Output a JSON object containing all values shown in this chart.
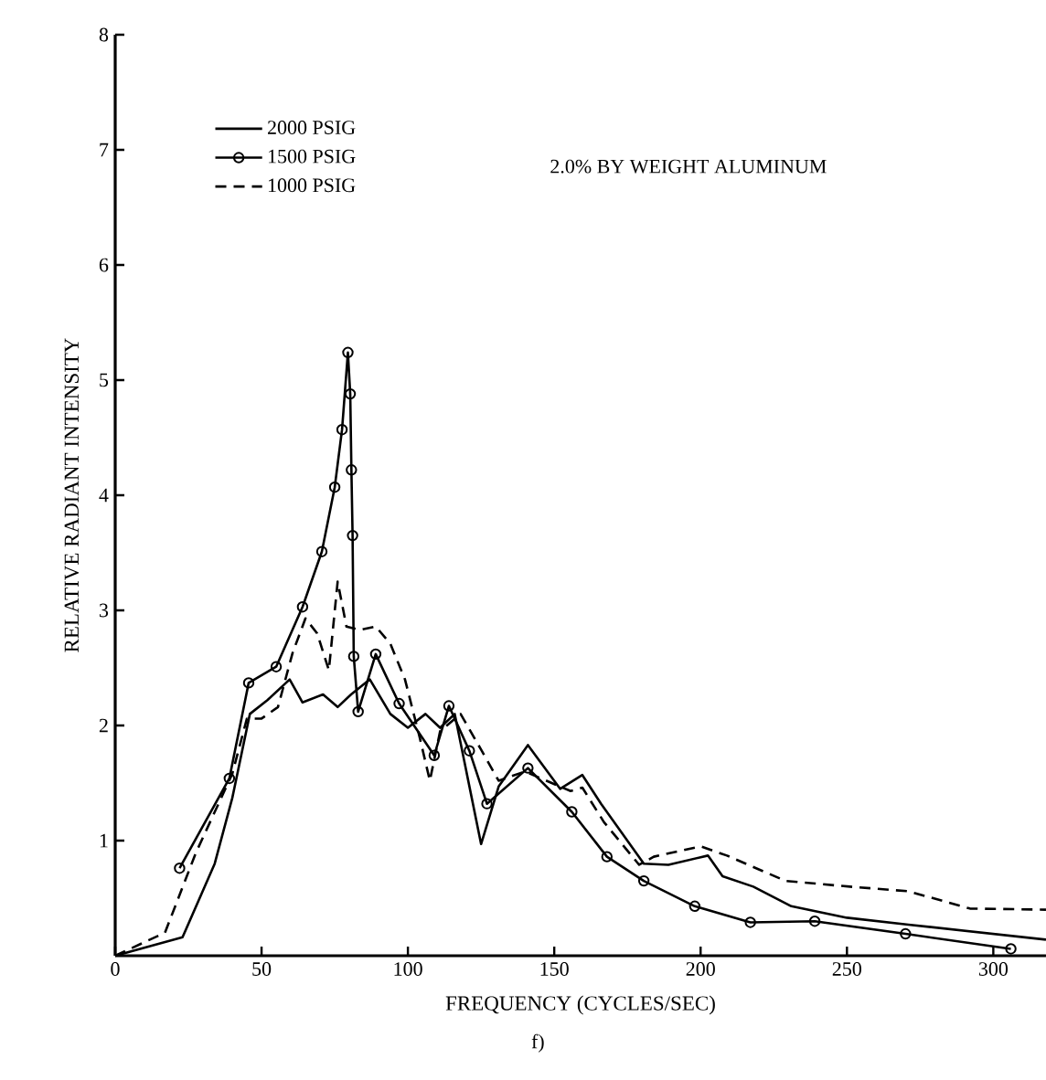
{
  "chart_data": {
    "type": "line",
    "xlabel": "FREQUENCY (CYCLES/SEC)",
    "ylabel": "RELATIVE RADIANT INTENSITY",
    "annotations": [
      "2.0% BY WEIGHT ALUMINUM",
      "f)"
    ],
    "xlim": [
      0,
      318
    ],
    "ylim": [
      0,
      8
    ],
    "xticks": [
      0,
      50,
      100,
      150,
      200,
      250,
      300
    ],
    "yticks": [
      1,
      2,
      3,
      4,
      5,
      6,
      7,
      8
    ],
    "grid": false,
    "legend": "top left",
    "series": [
      {
        "name": "2000 PSIG",
        "color": "#000000",
        "line_style": "solid",
        "marker": "none",
        "x": [
          0,
          23,
          34,
          40,
          46,
          52,
          59.6,
          64,
          71,
          76,
          80.6,
          87,
          94,
          100,
          106,
          111,
          116,
          125,
          131,
          141,
          152,
          159.6,
          166,
          180.6,
          189,
          202.5,
          207.5,
          218,
          231,
          250,
          271,
          318
        ],
        "values": [
          0,
          0.16,
          0.8,
          1.37,
          2.1,
          2.22,
          2.4,
          2.2,
          2.27,
          2.16,
          2.27,
          2.4,
          2.1,
          1.98,
          2.1,
          1.98,
          2.1,
          0.97,
          1.47,
          1.83,
          1.45,
          1.57,
          1.32,
          0.8,
          0.79,
          0.87,
          0.69,
          0.6,
          0.43,
          0.33,
          0.27,
          0.14
        ]
      },
      {
        "name": "1500 PSIG",
        "color": "#000000",
        "line_style": "solid",
        "marker": "circle",
        "x": [
          22,
          39,
          45.6,
          55,
          64,
          70.6,
          75,
          77.5,
          79.5,
          80.3,
          80.7,
          81.1,
          81.5,
          83,
          89,
          97,
          109,
          114,
          121,
          127,
          141,
          156,
          168,
          180.6,
          198,
          217,
          239,
          270,
          306
        ],
        "values": [
          0.76,
          1.54,
          2.37,
          2.51,
          3.03,
          3.51,
          4.07,
          4.57,
          5.24,
          4.88,
          4.22,
          3.65,
          2.6,
          2.12,
          2.62,
          2.19,
          1.74,
          2.17,
          1.78,
          1.32,
          1.63,
          1.25,
          0.86,
          0.65,
          0.43,
          0.29,
          0.3,
          0.19,
          0.06
        ]
      },
      {
        "name": "1000 PSIG",
        "color": "#000000",
        "line_style": "dashed",
        "marker": "none",
        "x": [
          0,
          17,
          27.5,
          40,
          45,
          50,
          55.6,
          60.6,
          65,
          69,
          73,
          76,
          79,
          83.6,
          89,
          94,
          99,
          104,
          107.5,
          111,
          118,
          125,
          131,
          140,
          155.6,
          159.6,
          167,
          179,
          184,
          200,
          209,
          229,
          251,
          271,
          292,
          318
        ],
        "values": [
          0,
          0.2,
          0.89,
          1.58,
          2.06,
          2.06,
          2.16,
          2.63,
          2.93,
          2.8,
          2.48,
          3.25,
          2.86,
          2.83,
          2.86,
          2.71,
          2.4,
          1.9,
          1.52,
          1.95,
          2.1,
          1.79,
          1.52,
          1.6,
          1.43,
          1.46,
          1.16,
          0.79,
          0.86,
          0.95,
          0.87,
          0.65,
          0.6,
          0.56,
          0.41,
          0.4
        ]
      }
    ]
  }
}
